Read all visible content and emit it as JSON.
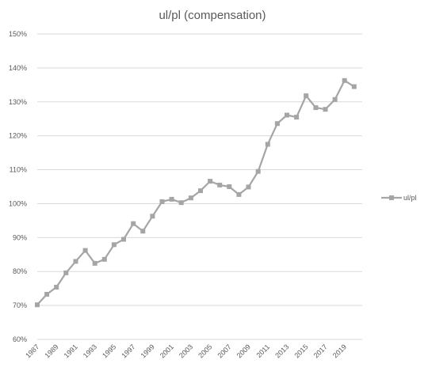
{
  "chart_data": {
    "type": "line",
    "title": "ul/pl (compensation)",
    "xlabel": "",
    "ylabel": "",
    "x": [
      1987,
      1988,
      1989,
      1990,
      1991,
      1992,
      1993,
      1994,
      1995,
      1996,
      1997,
      1998,
      1999,
      2000,
      2001,
      2002,
      2003,
      2004,
      2005,
      2006,
      2007,
      2008,
      2009,
      2010,
      2011,
      2012,
      2013,
      2014,
      2015,
      2016,
      2017,
      2018,
      2019,
      2020
    ],
    "x_tick_labels": [
      "1987",
      "1989",
      "1991",
      "1993",
      "1995",
      "1997",
      "1999",
      "2001",
      "2003",
      "2005",
      "2007",
      "2009",
      "2011",
      "2013",
      "2015",
      "2017",
      "2019"
    ],
    "y_tick_labels": [
      "60%",
      "70%",
      "80%",
      "90%",
      "100%",
      "110%",
      "120%",
      "130%",
      "140%",
      "150%"
    ],
    "ylim": [
      60,
      150
    ],
    "y_unit": "%",
    "grid": "horizontal",
    "legend_position": "right",
    "colors": {
      "series": "#a5a5a5",
      "grid": "#d9d9d9",
      "text": "#595959"
    },
    "series": [
      {
        "name": "ul/pl",
        "values": [
          70.2,
          73.3,
          75.4,
          79.6,
          83.0,
          86.2,
          82.4,
          83.6,
          87.9,
          89.5,
          94.1,
          91.9,
          96.3,
          100.6,
          101.3,
          100.3,
          101.7,
          103.8,
          106.6,
          105.5,
          105.0,
          102.7,
          104.9,
          109.5,
          117.5,
          123.6,
          126.1,
          125.5,
          131.8,
          128.3,
          127.8,
          130.7,
          136.3,
          134.5
        ]
      }
    ]
  }
}
